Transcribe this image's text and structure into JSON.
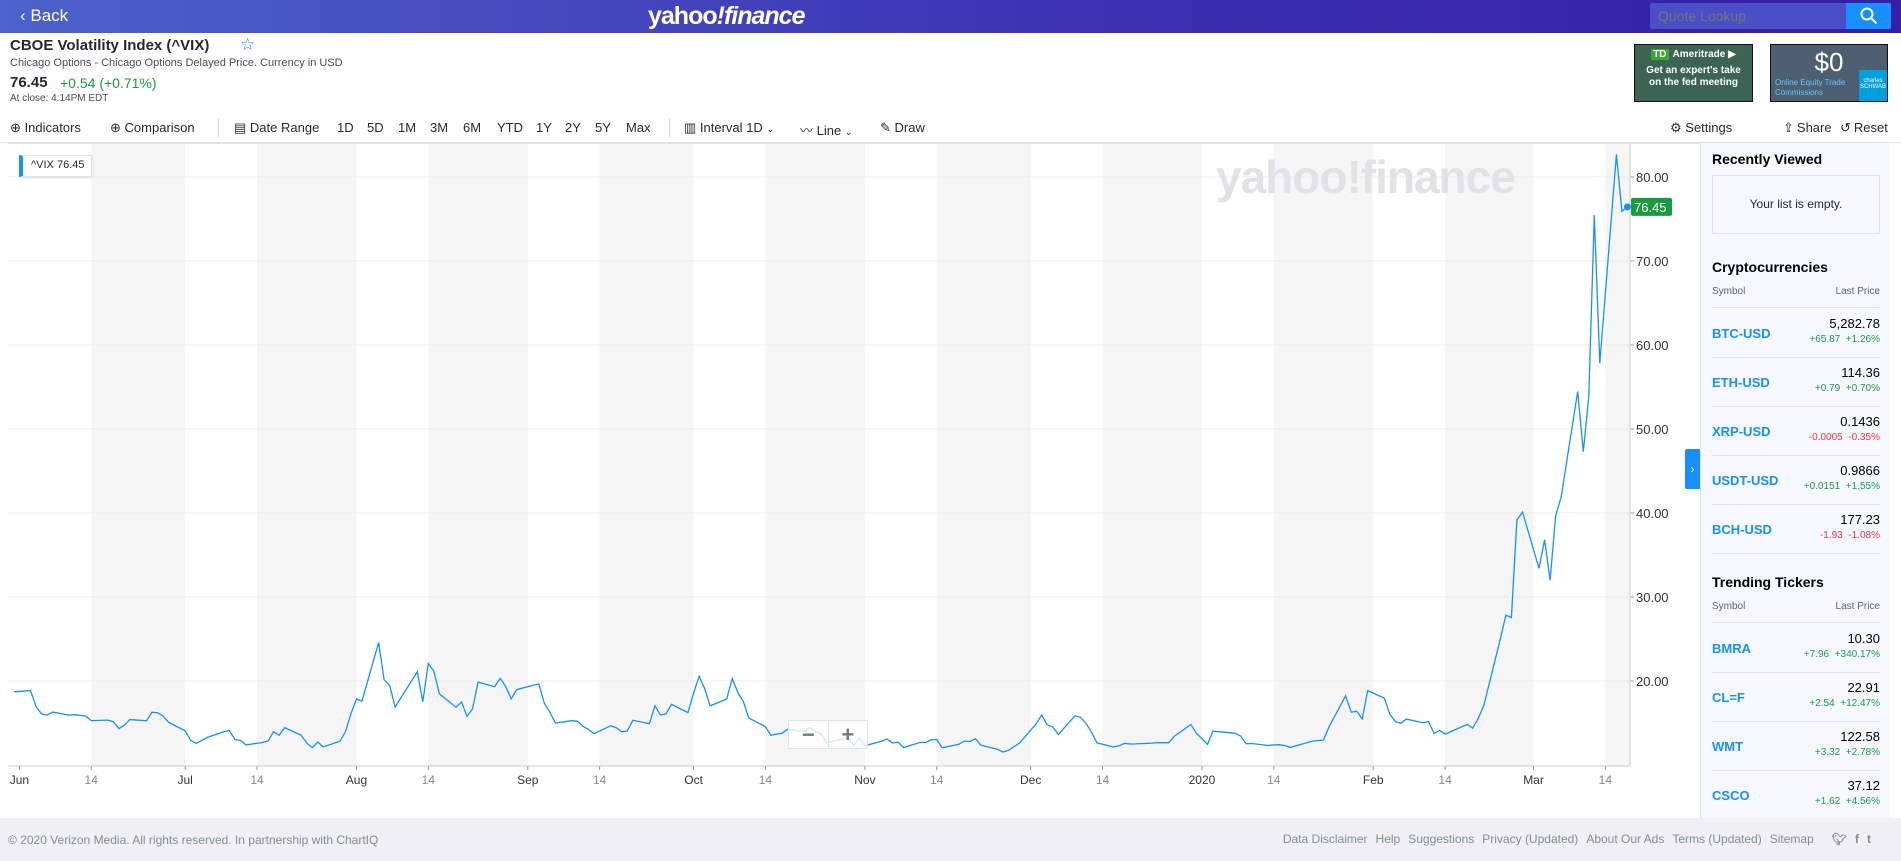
{
  "header": {
    "back": "Back",
    "logo_a": "yahoo",
    "logo_b": "!finance",
    "search_placeholder": "Quote Lookup"
  },
  "quote": {
    "title": "CBOE Volatility Index (^VIX)",
    "subtitle": "Chicago Options - Chicago Options Delayed Price. Currency in USD",
    "price": "76.45",
    "change": "+0.54 (+0.71%)",
    "close_time": "At close: 4:14PM EDT"
  },
  "ads": {
    "td_logo": "TD",
    "td_brand": "Ameritrade",
    "td_text": "Get an expert's take on the fed meeting",
    "schwab_big": "$0",
    "schwab_text": "Online Equity Trade Commissions",
    "schwab_logo": "charles SCHWAB"
  },
  "toolbar": {
    "indicators": "Indicators",
    "comparison": "Comparison",
    "date_range": "Date Range",
    "ranges": [
      "1D",
      "5D",
      "1M",
      "3M",
      "6M",
      "YTD",
      "1Y",
      "2Y",
      "5Y",
      "Max"
    ],
    "interval": "Interval",
    "interval_value": "1D",
    "line": "Line",
    "draw": "Draw",
    "settings": "Settings",
    "share": "Share",
    "reset": "Reset"
  },
  "chart_legend": {
    "symbol": "^VIX",
    "value": "76.45"
  },
  "watermark": "yahoo!finance",
  "zoom": {
    "minus": "−",
    "plus": "+"
  },
  "sidebar": {
    "recently_viewed": "Recently Viewed",
    "empty": "Your list is empty.",
    "crypto_title": "Cryptocurrencies",
    "col_symbol": "Symbol",
    "col_price": "Last Price",
    "crypto": [
      {
        "symbol": "BTC-USD",
        "price": "5,282.78",
        "change": "+65.87",
        "pct": "+1.26%",
        "color": "#1a9c3e"
      },
      {
        "symbol": "ETH-USD",
        "price": "114.36",
        "change": "+0.79",
        "pct": "+0.70%",
        "color": "#1a9c3e"
      },
      {
        "symbol": "XRP-USD",
        "price": "0.1436",
        "change": "-0.0005",
        "pct": "-0.35%",
        "color": "#ff333a"
      },
      {
        "symbol": "USDT-USD",
        "price": "0.9866",
        "change": "+0.0151",
        "pct": "+1.55%",
        "color": "#1a9c3e"
      },
      {
        "symbol": "BCH-USD",
        "price": "177.23",
        "change": "-1.93",
        "pct": "-1.08%",
        "color": "#ff333a"
      }
    ],
    "trending_title": "Trending Tickers",
    "trending": [
      {
        "symbol": "BMRA",
        "price": "10.30",
        "change": "+7.96",
        "pct": "+340.17%",
        "color": "#1a9c3e"
      },
      {
        "symbol": "CL=F",
        "price": "22.91",
        "change": "+2.54",
        "pct": "+12.47%",
        "color": "#1a9c3e"
      },
      {
        "symbol": "WMT",
        "price": "122.58",
        "change": "+3.32",
        "pct": "+2.78%",
        "color": "#1a9c3e"
      },
      {
        "symbol": "CSCO",
        "price": "37.12",
        "change": "+1.62",
        "pct": "+4.56%",
        "color": "#1a9c3e"
      }
    ]
  },
  "footer": {
    "copyright": "© 2020 Verizon Media. All rights reserved. In partnership with ChartIQ",
    "links": [
      "Data Disclaimer",
      "Help",
      "Suggestions",
      "Privacy (Updated)",
      "About Our Ads",
      "Terms (Updated)",
      "Sitemap"
    ]
  },
  "chart_data": {
    "type": "line",
    "series_name": "^VIX",
    "line_color": "#188fff",
    "last_label": "76.45",
    "last_label_color": "#1a9c3e",
    "ylim": [
      9.9,
      84
    ],
    "y_ticks": [
      "20.00",
      "30.00",
      "40.00",
      "50.00",
      "60.00",
      "70.00",
      "80.00"
    ],
    "y_tick_values": [
      20,
      30,
      40,
      50,
      60,
      70,
      80
    ],
    "x_ticks": [
      [
        "2019-06-01",
        "Jun"
      ],
      [
        "2019-06-14",
        "14"
      ],
      [
        "2019-07-01",
        "Jul"
      ],
      [
        "2019-07-14",
        "14"
      ],
      [
        "2019-08-01",
        "Aug"
      ],
      [
        "2019-08-14",
        "14"
      ],
      [
        "2019-09-01",
        "Sep"
      ],
      [
        "2019-09-14",
        "14"
      ],
      [
        "2019-10-01",
        "Oct"
      ],
      [
        "2019-10-14",
        "14"
      ],
      [
        "2019-11-01",
        "Nov"
      ],
      [
        "2019-11-14",
        "14"
      ],
      [
        "2019-12-01",
        "Dec"
      ],
      [
        "2019-12-14",
        "14"
      ],
      [
        "2020-01-01",
        "2020"
      ],
      [
        "2020-01-14",
        "14"
      ],
      [
        "2020-02-01",
        "Feb"
      ],
      [
        "2020-02-14",
        "14"
      ],
      [
        "2020-03-01",
        "Mar"
      ],
      [
        "2020-03-14",
        "14"
      ]
    ],
    "points": [
      [
        "2019-05-31",
        18.71
      ],
      [
        "2019-06-03",
        18.86
      ],
      [
        "2019-06-04",
        16.97
      ],
      [
        "2019-06-05",
        16.09
      ],
      [
        "2019-06-06",
        15.93
      ],
      [
        "2019-06-07",
        16.3
      ],
      [
        "2019-06-10",
        15.94
      ],
      [
        "2019-06-11",
        15.99
      ],
      [
        "2019-06-12",
        15.91
      ],
      [
        "2019-06-13",
        15.82
      ],
      [
        "2019-06-14",
        15.28
      ],
      [
        "2019-06-17",
        15.35
      ],
      [
        "2019-06-18",
        15.15
      ],
      [
        "2019-06-19",
        14.33
      ],
      [
        "2019-06-20",
        14.75
      ],
      [
        "2019-06-21",
        15.4
      ],
      [
        "2019-06-24",
        15.26
      ],
      [
        "2019-06-25",
        16.28
      ],
      [
        "2019-06-26",
        16.21
      ],
      [
        "2019-06-27",
        15.82
      ],
      [
        "2019-06-28",
        15.08
      ],
      [
        "2019-07-01",
        14.06
      ],
      [
        "2019-07-02",
        12.93
      ],
      [
        "2019-07-03",
        12.57
      ],
      [
        "2019-07-05",
        13.28
      ],
      [
        "2019-07-08",
        13.96
      ],
      [
        "2019-07-09",
        14.09
      ],
      [
        "2019-07-10",
        13.03
      ],
      [
        "2019-07-11",
        12.93
      ],
      [
        "2019-07-12",
        12.39
      ],
      [
        "2019-07-15",
        12.68
      ],
      [
        "2019-07-16",
        12.86
      ],
      [
        "2019-07-17",
        13.97
      ],
      [
        "2019-07-18",
        13.53
      ],
      [
        "2019-07-19",
        14.45
      ],
      [
        "2019-07-22",
        13.53
      ],
      [
        "2019-07-23",
        12.61
      ],
      [
        "2019-07-24",
        12.07
      ],
      [
        "2019-07-25",
        12.74
      ],
      [
        "2019-07-26",
        12.16
      ],
      [
        "2019-07-29",
        12.83
      ],
      [
        "2019-07-30",
        13.94
      ],
      [
        "2019-07-31",
        16.12
      ],
      [
        "2019-08-01",
        17.87
      ],
      [
        "2019-08-02",
        17.61
      ],
      [
        "2019-08-05",
        24.59
      ],
      [
        "2019-08-06",
        20.17
      ],
      [
        "2019-08-07",
        19.49
      ],
      [
        "2019-08-08",
        16.91
      ],
      [
        "2019-08-09",
        17.97
      ],
      [
        "2019-08-12",
        21.09
      ],
      [
        "2019-08-13",
        17.52
      ],
      [
        "2019-08-14",
        22.1
      ],
      [
        "2019-08-15",
        21.18
      ],
      [
        "2019-08-16",
        18.47
      ],
      [
        "2019-08-19",
        16.88
      ],
      [
        "2019-08-20",
        17.5
      ],
      [
        "2019-08-21",
        15.8
      ],
      [
        "2019-08-22",
        16.68
      ],
      [
        "2019-08-23",
        19.87
      ],
      [
        "2019-08-26",
        19.32
      ],
      [
        "2019-08-27",
        20.31
      ],
      [
        "2019-08-28",
        19.35
      ],
      [
        "2019-08-29",
        17.88
      ],
      [
        "2019-08-30",
        18.98
      ],
      [
        "2019-09-03",
        19.66
      ],
      [
        "2019-09-04",
        17.33
      ],
      [
        "2019-09-05",
        16.27
      ],
      [
        "2019-09-06",
        15.0
      ],
      [
        "2019-09-09",
        15.27
      ],
      [
        "2019-09-10",
        15.2
      ],
      [
        "2019-09-11",
        14.61
      ],
      [
        "2019-09-12",
        14.22
      ],
      [
        "2019-09-13",
        13.74
      ],
      [
        "2019-09-16",
        14.67
      ],
      [
        "2019-09-17",
        14.44
      ],
      [
        "2019-09-18",
        13.95
      ],
      [
        "2019-09-19",
        14.05
      ],
      [
        "2019-09-20",
        15.32
      ],
      [
        "2019-09-23",
        14.91
      ],
      [
        "2019-09-24",
        17.05
      ],
      [
        "2019-09-25",
        15.96
      ],
      [
        "2019-09-26",
        16.07
      ],
      [
        "2019-09-27",
        17.22
      ],
      [
        "2019-09-30",
        16.24
      ],
      [
        "2019-10-01",
        18.56
      ],
      [
        "2019-10-02",
        20.56
      ],
      [
        "2019-10-03",
        19.12
      ],
      [
        "2019-10-04",
        17.04
      ],
      [
        "2019-10-07",
        17.86
      ],
      [
        "2019-10-08",
        20.28
      ],
      [
        "2019-10-09",
        18.64
      ],
      [
        "2019-10-10",
        17.57
      ],
      [
        "2019-10-11",
        15.58
      ],
      [
        "2019-10-14",
        14.57
      ],
      [
        "2019-10-15",
        13.54
      ],
      [
        "2019-10-16",
        13.68
      ],
      [
        "2019-10-17",
        13.79
      ],
      [
        "2019-10-18",
        14.25
      ],
      [
        "2019-10-21",
        14.0
      ],
      [
        "2019-10-22",
        14.46
      ],
      [
        "2019-10-23",
        14.01
      ],
      [
        "2019-10-24",
        13.71
      ],
      [
        "2019-10-25",
        12.65
      ],
      [
        "2019-10-28",
        13.11
      ],
      [
        "2019-10-29",
        13.2
      ],
      [
        "2019-10-30",
        12.33
      ],
      [
        "2019-10-31",
        13.22
      ],
      [
        "2019-11-01",
        12.3
      ],
      [
        "2019-11-04",
        12.83
      ],
      [
        "2019-11-05",
        13.1
      ],
      [
        "2019-11-06",
        12.62
      ],
      [
        "2019-11-07",
        12.73
      ],
      [
        "2019-11-08",
        12.07
      ],
      [
        "2019-11-11",
        12.69
      ],
      [
        "2019-11-12",
        12.68
      ],
      [
        "2019-11-13",
        13.0
      ],
      [
        "2019-11-14",
        13.05
      ],
      [
        "2019-11-15",
        12.05
      ],
      [
        "2019-11-18",
        12.46
      ],
      [
        "2019-11-19",
        12.86
      ],
      [
        "2019-11-20",
        12.78
      ],
      [
        "2019-11-21",
        13.13
      ],
      [
        "2019-11-22",
        12.34
      ],
      [
        "2019-11-25",
        11.87
      ],
      [
        "2019-11-26",
        11.54
      ],
      [
        "2019-11-27",
        11.75
      ],
      [
        "2019-11-29",
        12.62
      ],
      [
        "2019-12-02",
        14.91
      ],
      [
        "2019-12-03",
        15.96
      ],
      [
        "2019-12-04",
        14.8
      ],
      [
        "2019-12-05",
        14.52
      ],
      [
        "2019-12-06",
        13.62
      ],
      [
        "2019-12-09",
        15.86
      ],
      [
        "2019-12-10",
        15.68
      ],
      [
        "2019-12-11",
        14.99
      ],
      [
        "2019-12-12",
        13.94
      ],
      [
        "2019-12-13",
        12.63
      ],
      [
        "2019-12-16",
        12.14
      ],
      [
        "2019-12-17",
        12.29
      ],
      [
        "2019-12-18",
        12.58
      ],
      [
        "2019-12-19",
        12.5
      ],
      [
        "2019-12-20",
        12.51
      ],
      [
        "2019-12-23",
        12.61
      ],
      [
        "2019-12-24",
        12.67
      ],
      [
        "2019-12-26",
        12.65
      ],
      [
        "2019-12-27",
        13.43
      ],
      [
        "2019-12-30",
        14.82
      ],
      [
        "2019-12-31",
        13.78
      ],
      [
        "2020-01-02",
        12.47
      ],
      [
        "2020-01-03",
        14.02
      ],
      [
        "2020-01-06",
        13.85
      ],
      [
        "2020-01-07",
        13.79
      ],
      [
        "2020-01-08",
        13.45
      ],
      [
        "2020-01-09",
        12.54
      ],
      [
        "2020-01-10",
        12.56
      ],
      [
        "2020-01-13",
        12.32
      ],
      [
        "2020-01-14",
        12.39
      ],
      [
        "2020-01-15",
        12.42
      ],
      [
        "2020-01-16",
        12.32
      ],
      [
        "2020-01-17",
        12.1
      ],
      [
        "2020-01-21",
        12.85
      ],
      [
        "2020-01-22",
        12.91
      ],
      [
        "2020-01-23",
        12.98
      ],
      [
        "2020-01-24",
        14.56
      ],
      [
        "2020-01-27",
        18.23
      ],
      [
        "2020-01-28",
        16.28
      ],
      [
        "2020-01-29",
        16.39
      ],
      [
        "2020-01-30",
        15.49
      ],
      [
        "2020-01-31",
        18.84
      ],
      [
        "2020-02-03",
        17.97
      ],
      [
        "2020-02-04",
        16.05
      ],
      [
        "2020-02-05",
        15.15
      ],
      [
        "2020-02-06",
        14.96
      ],
      [
        "2020-02-07",
        15.47
      ],
      [
        "2020-02-10",
        15.04
      ],
      [
        "2020-02-11",
        15.18
      ],
      [
        "2020-02-12",
        13.74
      ],
      [
        "2020-02-13",
        14.15
      ],
      [
        "2020-02-14",
        13.68
      ],
      [
        "2020-02-18",
        14.83
      ],
      [
        "2020-02-19",
        14.38
      ],
      [
        "2020-02-20",
        15.56
      ],
      [
        "2020-02-21",
        17.08
      ],
      [
        "2020-02-24",
        25.03
      ],
      [
        "2020-02-25",
        27.85
      ],
      [
        "2020-02-26",
        27.56
      ],
      [
        "2020-02-27",
        39.16
      ],
      [
        "2020-02-28",
        40.11
      ],
      [
        "2020-03-02",
        33.42
      ],
      [
        "2020-03-03",
        36.82
      ],
      [
        "2020-03-04",
        31.99
      ],
      [
        "2020-03-05",
        39.62
      ],
      [
        "2020-03-06",
        41.94
      ],
      [
        "2020-03-09",
        54.46
      ],
      [
        "2020-03-10",
        47.3
      ],
      [
        "2020-03-11",
        53.9
      ],
      [
        "2020-03-12",
        75.47
      ],
      [
        "2020-03-13",
        57.83
      ],
      [
        "2020-03-16",
        82.69
      ],
      [
        "2020-03-17",
        75.91
      ],
      [
        "2020-03-18",
        76.45
      ]
    ]
  }
}
